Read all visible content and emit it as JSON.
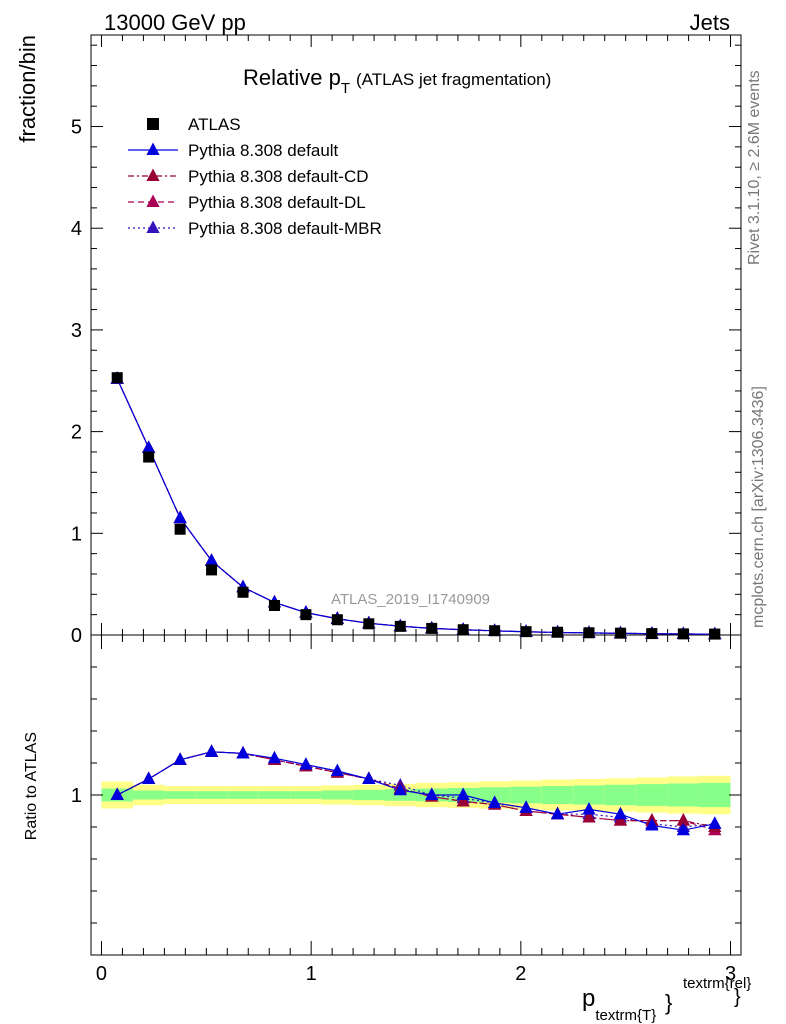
{
  "header": {
    "energy_label": "13000 GeV pp",
    "process_label": "Jets"
  },
  "plot_title": {
    "main": "Relative p",
    "sub": "T",
    "suffix": "(ATLAS jet fragmentation)"
  },
  "side_labels": {
    "rivet": "Rivet 3.1.10, ≥ 2.6M events",
    "mcplots": "mcplots.cern.ch [arXiv:1306.3436]"
  },
  "watermark": "ATLAS_2019_I1740909",
  "xlabel": {
    "main": "p",
    "sub": "textrm{T}",
    "sup": "textrm{rel}",
    "brace": "}"
  },
  "colors": {
    "atlas": "#000000",
    "default": "#0000dd",
    "cd": "#990033",
    "dl": "#aa0055",
    "mbr": "#3311bb",
    "band_yellow": "#ffff88",
    "band_green": "#88ff88"
  },
  "chart_data": [
    {
      "type": "line",
      "panel": "main",
      "ylabel": "fraction/bin",
      "xlim": [
        -0.05,
        3.05
      ],
      "ylim": [
        0,
        5.9
      ],
      "yticks": [
        0,
        1,
        2,
        3,
        4,
        5
      ],
      "ytick_labels": [
        "0",
        "1",
        "2",
        "3",
        "4",
        "5"
      ],
      "x": [
        0.075,
        0.225,
        0.375,
        0.525,
        0.675,
        0.825,
        0.975,
        1.125,
        1.275,
        1.425,
        1.575,
        1.725,
        1.875,
        2.025,
        2.175,
        2.325,
        2.475,
        2.625,
        2.775,
        2.925
      ],
      "series": [
        {
          "name": "ATLAS",
          "style": "marker",
          "values": [
            2.53,
            1.75,
            1.04,
            0.64,
            0.42,
            0.29,
            0.2,
            0.15,
            0.11,
            0.085,
            0.065,
            0.052,
            0.042,
            0.033,
            0.027,
            0.022,
            0.018,
            0.014,
            0.011,
            0.009
          ]
        },
        {
          "name": "Pythia 8.308 default",
          "style": "solid",
          "values": [
            2.52,
            1.84,
            1.15,
            0.73,
            0.47,
            0.32,
            0.22,
            0.16,
            0.115,
            0.086,
            0.065,
            0.052,
            0.041,
            0.032,
            0.025,
            0.021,
            0.017,
            0.013,
            0.01,
            0.008
          ]
        },
        {
          "name": "Pythia 8.308 default-CD",
          "style": "dashdot",
          "values": [
            2.52,
            1.84,
            1.15,
            0.73,
            0.47,
            0.32,
            0.22,
            0.16,
            0.116,
            0.087,
            0.065,
            0.051,
            0.041,
            0.031,
            0.025,
            0.02,
            0.016,
            0.013,
            0.01,
            0.008
          ]
        },
        {
          "name": "Pythia 8.308 default-DL",
          "style": "dashed",
          "values": [
            2.52,
            1.84,
            1.15,
            0.73,
            0.47,
            0.32,
            0.22,
            0.16,
            0.116,
            0.087,
            0.065,
            0.051,
            0.041,
            0.031,
            0.025,
            0.02,
            0.016,
            0.013,
            0.01,
            0.008
          ]
        },
        {
          "name": "Pythia 8.308 default-MBR",
          "style": "dotted",
          "values": [
            2.52,
            1.84,
            1.15,
            0.73,
            0.47,
            0.32,
            0.22,
            0.16,
            0.116,
            0.087,
            0.065,
            0.052,
            0.041,
            0.032,
            0.025,
            0.021,
            0.017,
            0.013,
            0.01,
            0.008
          ]
        }
      ]
    },
    {
      "type": "line",
      "panel": "ratio",
      "ylabel": "Ratio to ATLAS",
      "xlim": [
        -0.05,
        3.05
      ],
      "ylim": [
        0.5,
        1.5
      ],
      "yticks": [
        1
      ],
      "ytick_labels": [
        "1"
      ],
      "xticks": [
        0,
        1,
        2,
        3
      ],
      "xtick_labels": [
        "0",
        "1",
        "2",
        "3"
      ],
      "x": [
        0.075,
        0.225,
        0.375,
        0.525,
        0.675,
        0.825,
        0.975,
        1.125,
        1.275,
        1.425,
        1.575,
        1.725,
        1.875,
        2.025,
        2.175,
        2.325,
        2.475,
        2.625,
        2.775,
        2.925
      ],
      "band_yellow": [
        0.042,
        0.032,
        0.028,
        0.028,
        0.028,
        0.028,
        0.028,
        0.03,
        0.032,
        0.035,
        0.038,
        0.04,
        0.043,
        0.045,
        0.048,
        0.05,
        0.052,
        0.055,
        0.058,
        0.06
      ],
      "band_green": [
        0.02,
        0.014,
        0.012,
        0.012,
        0.012,
        0.012,
        0.012,
        0.014,
        0.016,
        0.018,
        0.02,
        0.022,
        0.024,
        0.026,
        0.028,
        0.03,
        0.032,
        0.034,
        0.036,
        0.038
      ],
      "series": [
        {
          "name": "Pythia 8.308 default",
          "style": "solid",
          "values": [
            1.0,
            1.05,
            1.11,
            1.135,
            1.13,
            1.115,
            1.095,
            1.075,
            1.05,
            1.015,
            1.0,
            1.0,
            0.975,
            0.96,
            0.94,
            0.955,
            0.94,
            0.905,
            0.89,
            0.91
          ]
        },
        {
          "name": "Pythia 8.308 default-CD",
          "style": "dashdot",
          "values": [
            1.0,
            1.05,
            1.11,
            1.135,
            1.13,
            1.11,
            1.09,
            1.07,
            1.05,
            1.02,
            0.995,
            0.98,
            0.97,
            0.95,
            0.94,
            0.93,
            0.92,
            0.92,
            0.92,
            0.9
          ]
        },
        {
          "name": "Pythia 8.308 default-DL",
          "style": "dashed",
          "values": [
            1.0,
            1.05,
            1.11,
            1.135,
            1.13,
            1.11,
            1.09,
            1.07,
            1.05,
            1.02,
            0.995,
            0.98,
            0.97,
            0.95,
            0.94,
            0.93,
            0.92,
            0.92,
            0.92,
            0.89
          ]
        },
        {
          "name": "Pythia 8.308 default-MBR",
          "style": "dotted",
          "values": [
            1.0,
            1.05,
            1.11,
            1.135,
            1.13,
            1.11,
            1.09,
            1.07,
            1.05,
            1.03,
            1.0,
            0.99,
            0.975,
            0.96,
            0.94,
            0.94,
            0.93,
            0.91,
            0.9,
            0.91
          ]
        }
      ]
    }
  ]
}
